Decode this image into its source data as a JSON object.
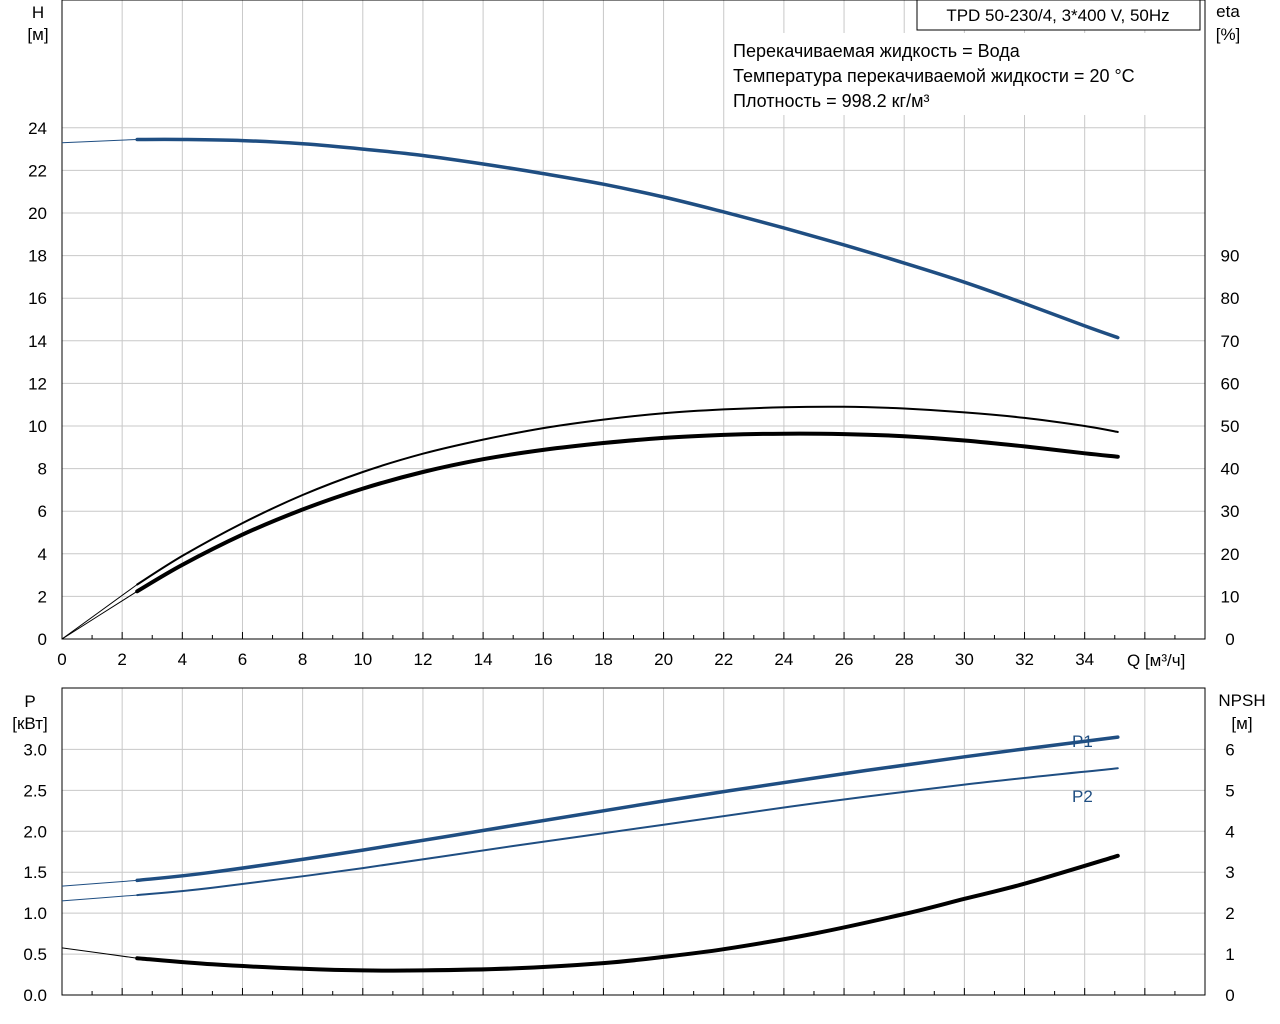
{
  "header": {
    "model": "TPD 50-230/4, 3*400 V, 50Hz",
    "info_lines": [
      "Перекачиваемая жидкость = Вода",
      "Температура перекачиваемой жидкости = 20 °C",
      "Плотность = 998.2 кг/м³"
    ]
  },
  "colors": {
    "blue": "#1f4e82",
    "black": "#000000",
    "grid": "#c8c8c8"
  },
  "chart_data": [
    {
      "type": "line",
      "xlabel": "Q [м³/ч]",
      "ylabel": [
        "H",
        "[м]"
      ],
      "y2label": [
        "eta",
        "[%]"
      ],
      "xlim": [
        0,
        38
      ],
      "ylim": [
        0,
        30
      ],
      "y2lim": [
        0,
        150
      ],
      "xticks": [
        0,
        2,
        4,
        6,
        8,
        10,
        12,
        14,
        16,
        18,
        20,
        22,
        24,
        26,
        28,
        30,
        32,
        34
      ],
      "yticks": [
        0,
        2,
        4,
        6,
        8,
        10,
        12,
        14,
        16,
        18,
        20,
        22,
        24
      ],
      "y2ticks": [
        0,
        10,
        20,
        30,
        40,
        50,
        60,
        70,
        80,
        90
      ],
      "xticklabels": [
        "0",
        "2",
        "4",
        "6",
        "8",
        "10",
        "12",
        "14",
        "16",
        "18",
        "20",
        "22",
        "24",
        "26",
        "28",
        "30",
        "32",
        "34"
      ],
      "yticklabels": [
        "0",
        "2",
        "4",
        "6",
        "8",
        "10",
        "12",
        "14",
        "16",
        "18",
        "20",
        "22",
        "24"
      ],
      "y2ticklabels": [
        "0",
        "10",
        "20",
        "30",
        "40",
        "50",
        "60",
        "70",
        "80",
        "90"
      ],
      "grid": true,
      "series": [
        {
          "axis": "y",
          "color": "#1f4e82",
          "thin_until": 2.5,
          "width": 3.5,
          "x": [
            0,
            2.5,
            4,
            6,
            8,
            10,
            12,
            14,
            16,
            18,
            20,
            22,
            24,
            26,
            28,
            30,
            32,
            34,
            35.1
          ],
          "y": [
            23.3,
            23.45,
            23.45,
            23.4,
            23.25,
            23.0,
            22.7,
            22.3,
            21.85,
            21.35,
            20.75,
            20.05,
            19.3,
            18.5,
            17.65,
            16.75,
            15.75,
            14.7,
            14.15
          ]
        },
        {
          "axis": "y2",
          "color": "#000000",
          "thin_until": 2.5,
          "width": 2,
          "x": [
            0,
            2.5,
            4,
            6,
            8,
            10,
            12,
            14,
            16,
            18,
            20,
            22,
            24,
            26,
            28,
            30,
            32,
            34,
            35.1
          ],
          "y": [
            0,
            12.8,
            19.5,
            27.2,
            33.8,
            39.2,
            43.5,
            46.8,
            49.5,
            51.5,
            53.0,
            53.9,
            54.4,
            54.5,
            54.1,
            53.2,
            51.9,
            50.0,
            48.6
          ]
        },
        {
          "axis": "y2",
          "color": "#000000",
          "thin_until": 2.5,
          "width": 4,
          "x": [
            0,
            2.5,
            4,
            6,
            8,
            10,
            12,
            14,
            16,
            18,
            20,
            22,
            24,
            26,
            28,
            30,
            32,
            34,
            35.1
          ],
          "y": [
            0,
            11.2,
            17.4,
            24.5,
            30.4,
            35.3,
            39.2,
            42.2,
            44.4,
            46.0,
            47.2,
            47.9,
            48.2,
            48.1,
            47.6,
            46.6,
            45.2,
            43.6,
            42.8
          ]
        }
      ]
    },
    {
      "type": "line",
      "xlabel": "",
      "ylabel": [
        "P",
        "[кВт]"
      ],
      "y2label": [
        "NPSH",
        "[м]"
      ],
      "xlim": [
        0,
        38
      ],
      "ylim": [
        0,
        3.75
      ],
      "y2lim": [
        0,
        7.5
      ],
      "xticks": [
        0,
        2,
        4,
        6,
        8,
        10,
        12,
        14,
        16,
        18,
        20,
        22,
        24,
        26,
        28,
        30,
        32,
        34
      ],
      "yticks": [
        0,
        0.5,
        1.0,
        1.5,
        2.0,
        2.5,
        3.0
      ],
      "y2ticks": [
        0,
        1,
        2,
        3,
        4,
        5,
        6
      ],
      "yticklabels": [
        "0.0",
        "0.5",
        "1.0",
        "1.5",
        "2.0",
        "2.5",
        "3.0"
      ],
      "y2ticklabels": [
        "0",
        "1",
        "2",
        "3",
        "4",
        "5",
        "6"
      ],
      "grid": true,
      "series": [
        {
          "name": "P1",
          "axis": "y",
          "color": "#1f4e82",
          "thin_until": 2.5,
          "width": 3.5,
          "x": [
            0,
            2.5,
            5,
            10,
            15,
            20,
            25,
            30,
            35.1
          ],
          "y": [
            1.33,
            1.4,
            1.5,
            1.77,
            2.07,
            2.37,
            2.65,
            2.91,
            3.15
          ]
        },
        {
          "name": "P2",
          "axis": "y",
          "color": "#1f4e82",
          "thin_until": 2.5,
          "width": 2,
          "x": [
            0,
            2.5,
            5,
            10,
            15,
            20,
            25,
            30,
            35.1
          ],
          "y": [
            1.15,
            1.22,
            1.31,
            1.55,
            1.82,
            2.08,
            2.34,
            2.57,
            2.77
          ]
        },
        {
          "axis": "y2",
          "color": "#000000",
          "thin_until": 2.5,
          "width": 4,
          "x": [
            0,
            2.5,
            5,
            8,
            10,
            12,
            15,
            18,
            20,
            22,
            25,
            28,
            30,
            32,
            35.1
          ],
          "y": [
            1.15,
            0.9,
            0.75,
            0.64,
            0.6,
            0.6,
            0.65,
            0.78,
            0.93,
            1.12,
            1.5,
            1.98,
            2.35,
            2.72,
            3.4
          ]
        }
      ]
    }
  ]
}
